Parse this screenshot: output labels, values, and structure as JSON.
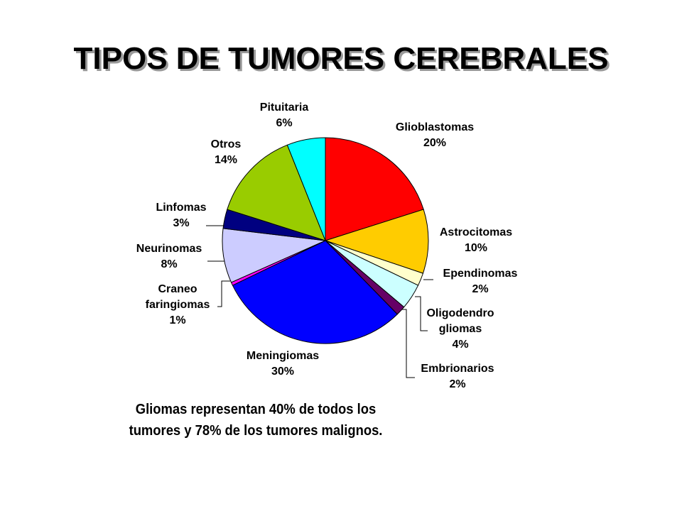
{
  "title": "TIPOS DE TUMORES CEREBRALES",
  "note_line1": "Gliomas representan 40% de todos los",
  "note_line2": "tumores y 78% de los tumores malignos.",
  "chart_data": {
    "type": "pie",
    "title": "",
    "slices": [
      {
        "name": [
          "Glioblastomas"
        ],
        "pct_label": "20%",
        "value": 20,
        "color": "#ff0000"
      },
      {
        "name": [
          "Astrocitomas"
        ],
        "pct_label": "10%",
        "value": 10,
        "color": "#ffcc00"
      },
      {
        "name": [
          "Ependinomas"
        ],
        "pct_label": "2%",
        "value": 2,
        "color": "#ffffcc"
      },
      {
        "name": [
          "Oligodendro",
          "gliomas"
        ],
        "pct_label": "4%",
        "value": 4,
        "color": "#ccffff"
      },
      {
        "name": [
          "Embrionarios"
        ],
        "pct_label": "2%",
        "value": 1.5,
        "color": "#660066"
      },
      {
        "name": [
          "Meningiomas"
        ],
        "pct_label": "30%",
        "value": 30,
        "color": "#0000ff"
      },
      {
        "name": [
          "Craneo",
          "faringiomas"
        ],
        "pct_label": "1%",
        "value": 0.5,
        "color": "#ff00ff"
      },
      {
        "name": [
          "Neurinomas"
        ],
        "pct_label": "8%",
        "value": 8.5,
        "color": "#ccccff"
      },
      {
        "name": [
          "Linfomas"
        ],
        "pct_label": "3%",
        "value": 3,
        "color": "#000080"
      },
      {
        "name": [
          "Otros"
        ],
        "pct_label": "14%",
        "value": 14,
        "color": "#99cc00"
      },
      {
        "name": [
          "Pituitaria"
        ],
        "pct_label": "6%",
        "value": 6,
        "color": "#00ffff"
      }
    ]
  }
}
